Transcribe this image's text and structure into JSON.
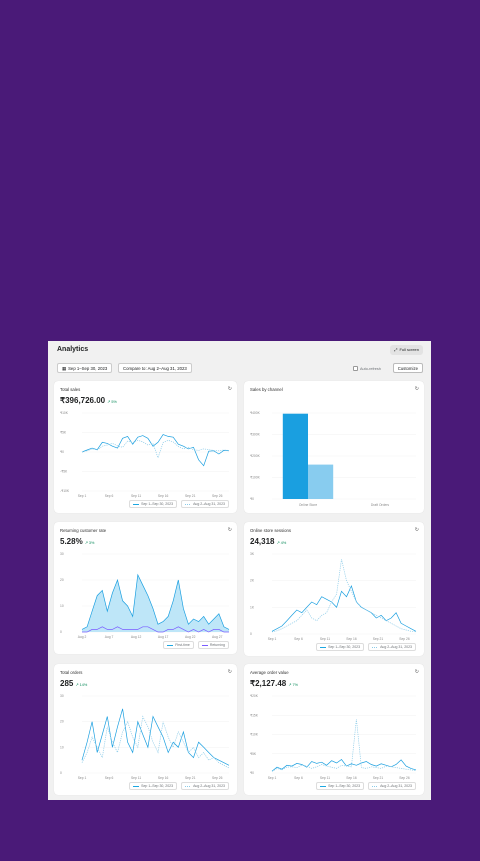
{
  "header": {
    "title": "Analytics",
    "fullscreen_label": "Full screen"
  },
  "filters": {
    "date_range": "Sep 1–Sep 30, 2023",
    "compare": "Compare to: Aug 2–Aug 31, 2023",
    "auto_refresh": "Auto-refresh",
    "customize": "Customize"
  },
  "cards": [
    {
      "title": "Total sales",
      "value": "₹396,726.00",
      "change": "↗ 5%",
      "legend": [
        "Sep 1–Sep 30, 2023",
        "Aug 2–Aug 31, 2023"
      ],
      "yticks": [
        "₹10K",
        "₹5K",
        "₹0",
        "-₹5K",
        "-₹10K"
      ],
      "xticks": [
        "Sep 1",
        "Sep 6",
        "Sep 11",
        "Sep 16",
        "Sep 21",
        "Sep 26"
      ]
    },
    {
      "title": "Sales by channel",
      "value": "",
      "yticks": [
        "₹400K",
        "₹300K",
        "₹200K",
        "₹100K",
        "₹0"
      ],
      "xticks": [
        "Online Store",
        "Draft Orders"
      ]
    },
    {
      "title": "Returning customer rate",
      "value": "5.28%",
      "change": "↗ 3%",
      "legend": [
        "First-time",
        "Returning"
      ],
      "yticks": [
        "30",
        "20",
        "10",
        "0"
      ],
      "xticks": [
        "Aug 2",
        "Aug 7",
        "Aug 12",
        "Aug 17",
        "Aug 22",
        "Aug 27"
      ]
    },
    {
      "title": "Online store sessions",
      "value": "24,318",
      "change": "↗ 4%",
      "legend": [
        "Sep 1–Sep 30, 2023",
        "Aug 2–Aug 31, 2023"
      ],
      "yticks": [
        "3K",
        "2K",
        "1K",
        "0"
      ],
      "xticks": [
        "Sep 1",
        "Sep 6",
        "Sep 11",
        "Sep 16",
        "Sep 21",
        "Sep 26"
      ]
    },
    {
      "title": "Total orders",
      "value": "285",
      "change": "↗ 14%",
      "legend": [
        "Sep 1–Sep 30, 2023",
        "Aug 2–Aug 31, 2023"
      ],
      "yticks": [
        "30",
        "20",
        "10",
        "0"
      ],
      "xticks": [
        "Sep 1",
        "Sep 6",
        "Sep 11",
        "Sep 16",
        "Sep 21",
        "Sep 26"
      ]
    },
    {
      "title": "Average order value",
      "value": "₹2,127.48",
      "change": "↗ 7%",
      "legend": [
        "Sep 1–Sep 30, 2023",
        "Aug 2–Aug 31, 2023"
      ],
      "yticks": [
        "₹20K",
        "₹15K",
        "₹10K",
        "₹5K",
        "₹0"
      ],
      "xticks": [
        "Sep 1",
        "Sep 6",
        "Sep 11",
        "Sep 16",
        "Sep 21",
        "Sep 26"
      ]
    }
  ],
  "chart_data": [
    {
      "type": "line",
      "title": "Total sales",
      "ylim": [
        -10000,
        10000
      ],
      "series": [
        {
          "name": "Sep 1–Sep 30, 2023",
          "values": [
            0,
            500,
            1000,
            600,
            2500,
            2200,
            1500,
            1000,
            3500,
            4000,
            2000,
            3800,
            4200,
            3500,
            1500,
            2500,
            4500,
            4000,
            3800,
            2000,
            1500,
            800,
            1200,
            -2000,
            -3500,
            200,
            300,
            -500,
            400,
            300
          ]
        },
        {
          "name": "Aug 2–Aug 31, 2023",
          "values": [
            0,
            300,
            800,
            500,
            1500,
            1800,
            2200,
            1600,
            1200,
            2800,
            2400,
            3000,
            2600,
            1800,
            2200,
            -1500,
            2400,
            3000,
            2600,
            1400,
            800,
            1200,
            600,
            400,
            800,
            600,
            400,
            300,
            500,
            400
          ]
        }
      ]
    },
    {
      "type": "bar",
      "title": "Sales by channel",
      "categories": [
        "Online Store",
        "Draft Orders"
      ],
      "series": [
        {
          "name": "Sep 1–Sep 30, 2023",
          "values": [
            396726,
            0
          ]
        },
        {
          "name": "Aug 2–Aug 31, 2023",
          "values": [
            160000,
            0
          ]
        }
      ],
      "ylim": [
        0,
        400000
      ]
    },
    {
      "type": "area",
      "title": "Returning customer rate",
      "ylim": [
        0,
        30
      ],
      "series": [
        {
          "name": "First-time",
          "values": [
            1,
            2,
            8,
            14,
            16,
            8,
            15,
            20,
            12,
            10,
            6,
            22,
            18,
            14,
            9,
            3,
            4,
            6,
            12,
            20,
            9,
            3,
            5,
            4,
            6,
            3,
            5,
            7,
            2,
            1
          ]
        },
        {
          "name": "Returning",
          "values": [
            0,
            0,
            1,
            1,
            2,
            1,
            1,
            2,
            1,
            1,
            1,
            1,
            2,
            2,
            1,
            0,
            0,
            1,
            1,
            2,
            1,
            0,
            1,
            0,
            1,
            0,
            1,
            1,
            0,
            0
          ]
        }
      ]
    },
    {
      "type": "line",
      "title": "Online store sessions",
      "ylim": [
        0,
        3000
      ],
      "series": [
        {
          "name": "Sep 1–Sep 30, 2023",
          "values": [
            100,
            200,
            300,
            500,
            700,
            900,
            800,
            1000,
            1200,
            1100,
            1400,
            1300,
            1200,
            1000,
            1600,
            1400,
            1800,
            1200,
            1000,
            900,
            800,
            600,
            700,
            500,
            600,
            800,
            400,
            300,
            200,
            100
          ]
        },
        {
          "name": "Aug 2–Aug 31, 2023",
          "values": [
            80,
            120,
            200,
            300,
            400,
            500,
            700,
            900,
            600,
            500,
            700,
            800,
            1200,
            1500,
            2800,
            2000,
            1600,
            1200,
            1000,
            900,
            800,
            700,
            600,
            500,
            400,
            300,
            200,
            150,
            100,
            80
          ]
        }
      ]
    },
    {
      "type": "line",
      "title": "Total orders",
      "ylim": [
        0,
        30
      ],
      "series": [
        {
          "name": "Sep 1–Sep 30, 2023",
          "values": [
            5,
            12,
            20,
            8,
            15,
            22,
            10,
            18,
            25,
            12,
            8,
            20,
            15,
            10,
            22,
            18,
            14,
            8,
            12,
            10,
            16,
            8,
            6,
            12,
            10,
            8,
            6,
            5,
            4,
            3
          ]
        },
        {
          "name": "Aug 2–Aug 31, 2023",
          "values": [
            4,
            8,
            14,
            10,
            6,
            18,
            12,
            8,
            16,
            20,
            14,
            10,
            22,
            18,
            12,
            8,
            20,
            14,
            10,
            16,
            12,
            8,
            10,
            6,
            8,
            5,
            6,
            4,
            3,
            2
          ]
        }
      ]
    },
    {
      "type": "line",
      "title": "Average order value",
      "ylim": [
        0,
        20000
      ],
      "series": [
        {
          "name": "Sep 1–Sep 30, 2023",
          "values": [
            500,
            1500,
            1000,
            2000,
            1800,
            2500,
            2200,
            1500,
            3000,
            2500,
            2800,
            2000,
            3200,
            2600,
            3500,
            1800,
            2400,
            2000,
            2600,
            3000,
            2200,
            1800,
            2400,
            2000,
            1600,
            2200,
            3400,
            1800,
            1200,
            800
          ]
        },
        {
          "name": "Aug 2–Aug 31, 2023",
          "values": [
            400,
            1200,
            800,
            1500,
            1600,
            1400,
            2000,
            1800,
            1200,
            1600,
            2200,
            1800,
            1500,
            1200,
            2000,
            1800,
            1600,
            14000,
            1400,
            1200,
            1600,
            1400,
            1200,
            1800,
            1600,
            1400,
            1200,
            1000,
            800,
            600
          ]
        }
      ]
    }
  ]
}
